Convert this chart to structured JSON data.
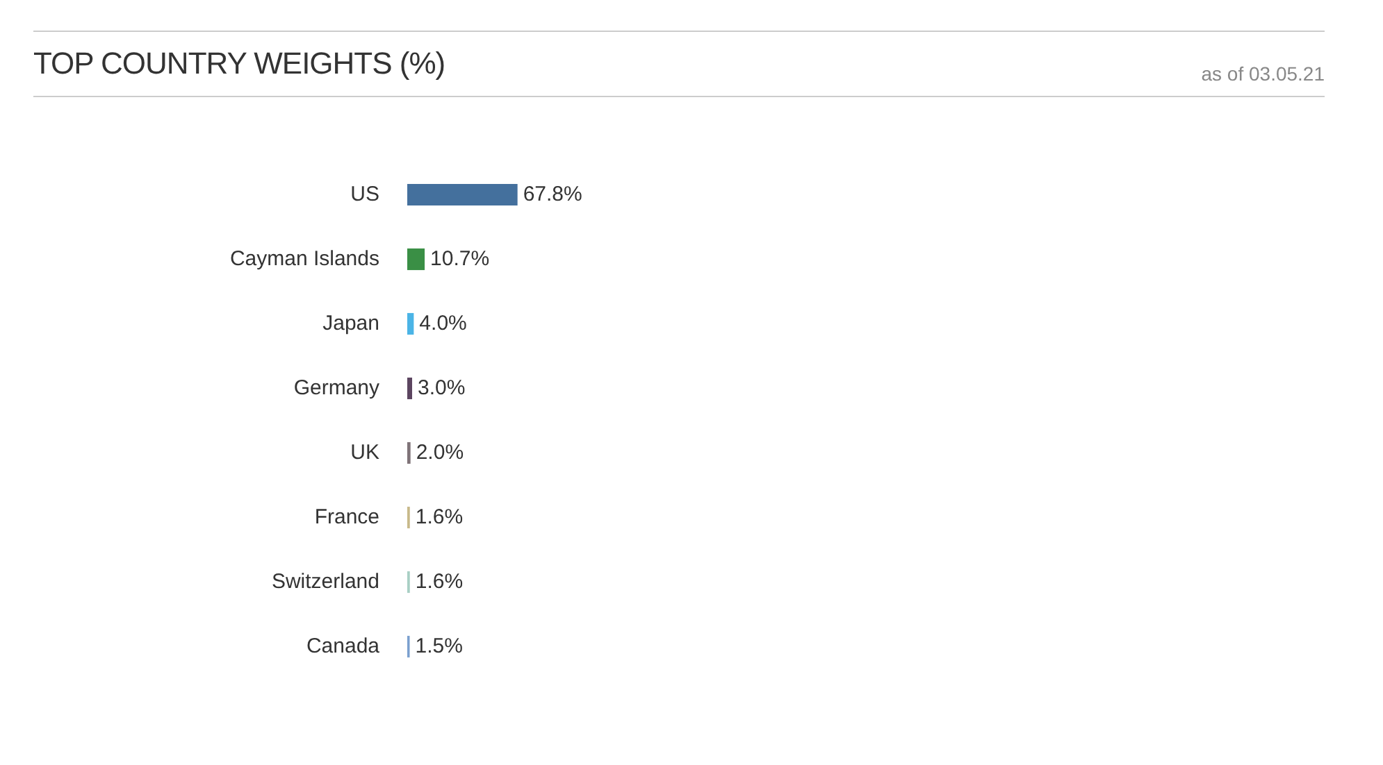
{
  "chart_data": {
    "type": "bar",
    "orientation": "horizontal",
    "title": "TOP COUNTRY WEIGHTS (%)",
    "subtitle": "as of 03.05.21",
    "categories": [
      "US",
      "Cayman Islands",
      "Japan",
      "Germany",
      "UK",
      "France",
      "Switzerland",
      "Canada"
    ],
    "values": [
      67.8,
      10.7,
      4.0,
      3.0,
      2.0,
      1.6,
      1.6,
      1.5
    ],
    "colors": [
      "#44709d",
      "#3a8f45",
      "#4bb4e6",
      "#5c4560",
      "#7f7378",
      "#c8b98a",
      "#a8cfc4",
      "#7ba0cf"
    ],
    "value_labels": [
      "67.8%",
      "10.7%",
      "4.0%",
      "3.0%",
      "2.0%",
      "1.6%",
      "1.6%",
      "1.5%"
    ],
    "tick_labels": "y",
    "grid": false,
    "legend": false
  }
}
